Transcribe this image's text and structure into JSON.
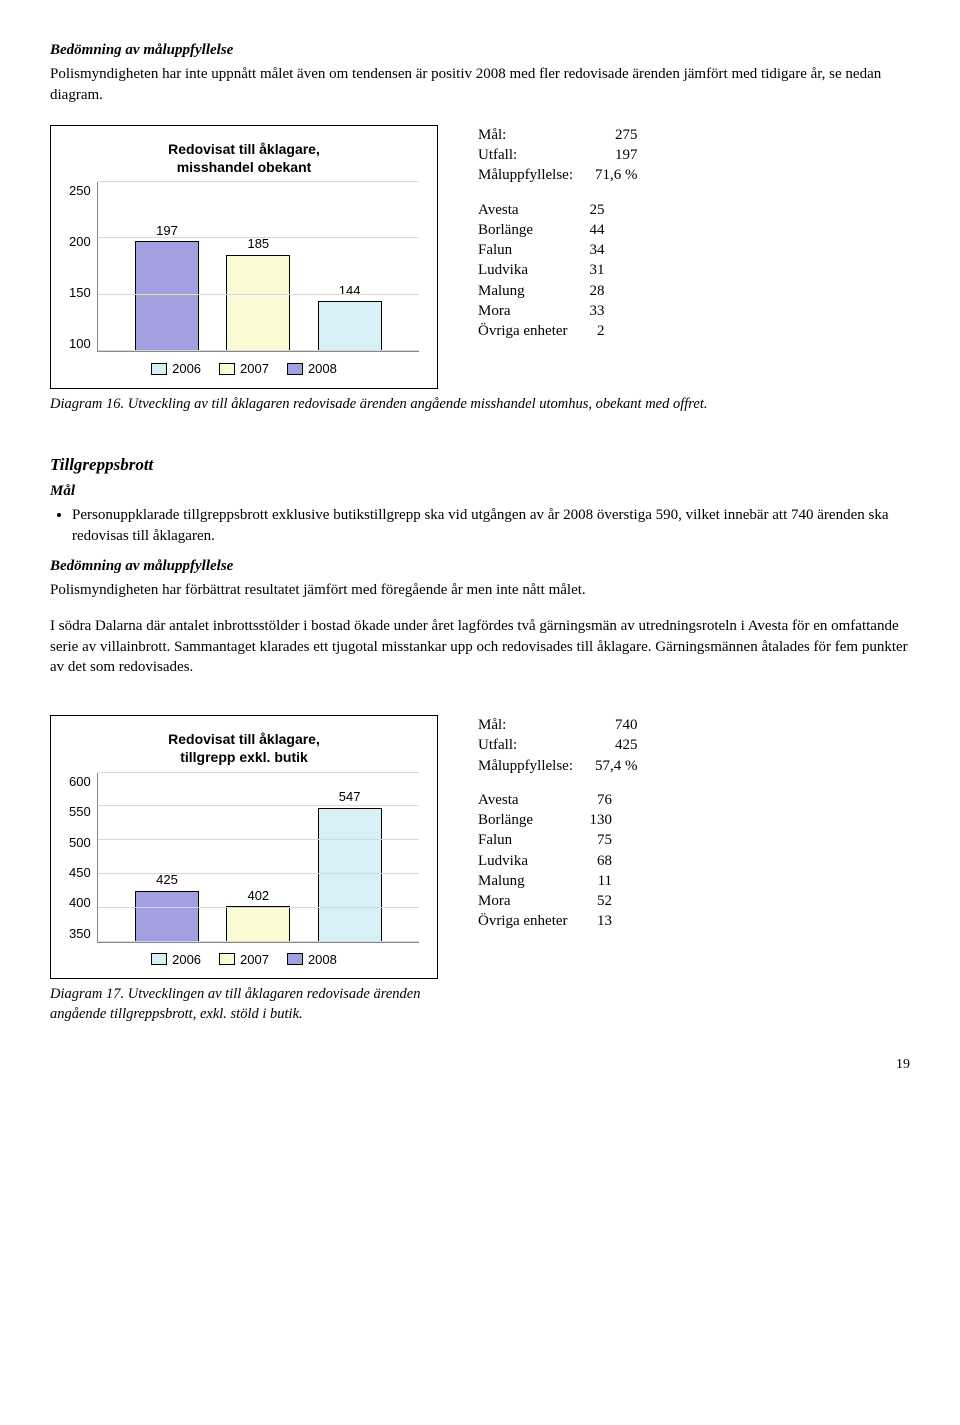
{
  "intro": {
    "heading": "Bedömning av måluppfyllelse",
    "text": "Polismyndigheten har inte uppnått målet även om tendensen är positiv 2008 med fler redovisade ärenden jämfört med tidigare år, se nedan diagram."
  },
  "chart1": {
    "title_l1": "Redovisat till åklagare,",
    "title_l2": "misshandel obekant",
    "ymin": 100,
    "ymax": 250,
    "ystep": 50,
    "bars": [
      {
        "label": "197",
        "value": 197,
        "year": "2008",
        "color": "#a3a0df"
      },
      {
        "label": "185",
        "value": 185,
        "year": "2007",
        "color": "#fcfad2"
      },
      {
        "label": "144",
        "value": 144,
        "year": "2006",
        "color": "#d6f0f5"
      }
    ],
    "legend_colors": {
      "2008": "#a3a0df",
      "2007": "#fcfad2",
      "2006": "#d6f0f5"
    },
    "stats_top": [
      [
        "Mål:",
        "275"
      ],
      [
        "Utfall:",
        "197"
      ],
      [
        "Måluppfyllelse:",
        "71,6 %"
      ]
    ],
    "stats_list": [
      [
        "Avesta",
        "25"
      ],
      [
        "Borlänge",
        "44"
      ],
      [
        "Falun",
        "34"
      ],
      [
        "Ludvika",
        "31"
      ],
      [
        "Malung",
        "28"
      ],
      [
        "Mora",
        "33"
      ],
      [
        "Övriga enheter",
        "2"
      ]
    ],
    "caption": "Diagram 16. Utveckling av till åklagaren redovisade ärenden angående misshandel utomhus, obekant med offret."
  },
  "tillgrepp": {
    "heading": "Tillgreppsbrott",
    "mal_label": "Mål",
    "bullet": "Personuppklarade tillgreppsbrott exklusive butikstillgrepp ska vid utgången av år 2008 överstiga 590, vilket innebär att 740 ärenden ska redovisas till åklagaren.",
    "bed_heading": "Bedömning av måluppfyllelse",
    "bed_text": "Polismyndigheten har förbättrat resultatet jämfört med föregående år men inte nått målet.",
    "para2": "I södra Dalarna där antalet inbrottsstölder i bostad ökade under året lagfördes två gärningsmän av utredningsroteln i Avesta för en omfattande serie av villainbrott. Sammantaget klarades ett tjugotal misstankar upp och redovisades till åklagare. Gärningsmännen åtalades för fem punkter av det som redovisades."
  },
  "chart2": {
    "title_l1": "Redovisat till åklagare,",
    "title_l2": "tillgrepp exkl. butik",
    "ymin": 350,
    "ymax": 600,
    "ystep": 50,
    "bars": [
      {
        "label": "425",
        "value": 425,
        "year": "2008",
        "color": "#a3a0df"
      },
      {
        "label": "402",
        "value": 402,
        "year": "2007",
        "color": "#fcfad2"
      },
      {
        "label": "547",
        "value": 547,
        "year": "2006",
        "color": "#d6f0f5"
      }
    ],
    "legend_colors": {
      "2008": "#a3a0df",
      "2007": "#fcfad2",
      "2006": "#d6f0f5"
    },
    "stats_top": [
      [
        "Mål:",
        "740"
      ],
      [
        "Utfall:",
        "425"
      ],
      [
        "Måluppfyllelse:",
        "57,4 %"
      ]
    ],
    "stats_list": [
      [
        "Avesta",
        "76"
      ],
      [
        "Borlänge",
        "130"
      ],
      [
        "Falun",
        "75"
      ],
      [
        "Ludvika",
        "68"
      ],
      [
        "Malung",
        "11"
      ],
      [
        "Mora",
        "52"
      ],
      [
        "Övriga enheter",
        "13"
      ]
    ],
    "caption_l1": "Diagram 17. Utvecklingen av till åklagaren redovisade ärenden",
    "caption_l2": "angående tillgreppsbrott, exkl. stöld i butik."
  },
  "page_number": "19"
}
